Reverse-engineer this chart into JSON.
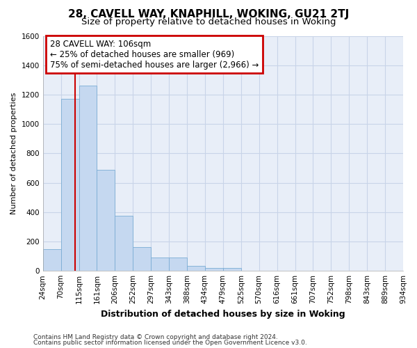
{
  "title": "28, CAVELL WAY, KNAPHILL, WOKING, GU21 2TJ",
  "subtitle": "Size of property relative to detached houses in Woking",
  "xlabel": "Distribution of detached houses by size in Woking",
  "ylabel": "Number of detached properties",
  "bar_values": [
    150,
    1170,
    1260,
    690,
    375,
    160,
    90,
    90,
    35,
    20,
    20,
    0,
    0,
    0,
    0,
    0,
    0,
    0,
    0,
    0
  ],
  "categories": [
    "24sqm",
    "70sqm",
    "115sqm",
    "161sqm",
    "206sqm",
    "252sqm",
    "297sqm",
    "343sqm",
    "388sqm",
    "434sqm",
    "479sqm",
    "525sqm",
    "570sqm",
    "616sqm",
    "661sqm",
    "707sqm",
    "752sqm",
    "798sqm",
    "843sqm",
    "889sqm",
    "934sqm"
  ],
  "bar_color": "#c5d8f0",
  "bar_edge_color": "#7aadd4",
  "property_line_color": "#cc0000",
  "annotation_text": "28 CAVELL WAY: 106sqm\n← 25% of detached houses are smaller (969)\n75% of semi-detached houses are larger (2,966) →",
  "annotation_box_color": "#ffffff",
  "annotation_box_edge_color": "#cc0000",
  "ylim": [
    0,
    1600
  ],
  "yticks": [
    0,
    200,
    400,
    600,
    800,
    1000,
    1200,
    1400,
    1600
  ],
  "grid_color": "#c8d4e8",
  "bg_color": "#ffffff",
  "plot_bg_color": "#e8eef8",
  "footer_line1": "Contains HM Land Registry data © Crown copyright and database right 2024.",
  "footer_line2": "Contains public sector information licensed under the Open Government Licence v3.0.",
  "title_fontsize": 11,
  "subtitle_fontsize": 9.5,
  "xlabel_fontsize": 9,
  "ylabel_fontsize": 8,
  "tick_fontsize": 7.5,
  "footer_fontsize": 6.5
}
